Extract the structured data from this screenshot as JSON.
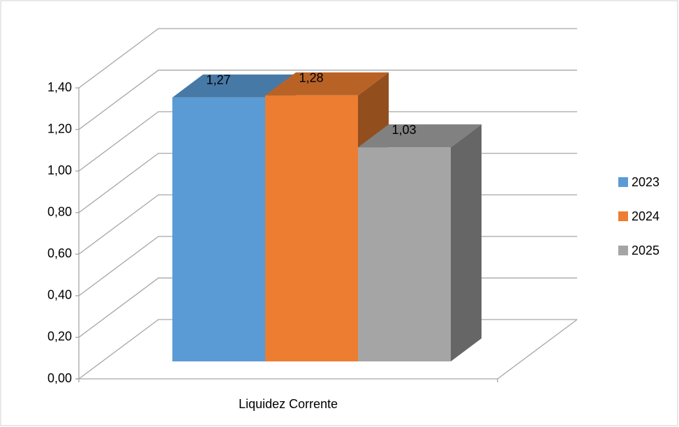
{
  "chart_data": {
    "type": "bar3d",
    "categories": [
      "Liquidez Corrente"
    ],
    "series": [
      {
        "name": "2023",
        "color": "#5b9bd5",
        "values": [
          1.27
        ],
        "value_labels": [
          "1,27"
        ]
      },
      {
        "name": "2024",
        "color": "#ed7d31",
        "values": [
          1.28
        ],
        "value_labels": [
          "1,28"
        ]
      },
      {
        "name": "2025",
        "color": "#a5a5a5",
        "values": [
          1.03
        ],
        "value_labels": [
          "1,03"
        ]
      }
    ],
    "ylim": [
      0,
      1.4
    ],
    "yticks": [
      {
        "value": 0,
        "label": "0,00"
      },
      {
        "value": 0.2,
        "label": "0,20"
      },
      {
        "value": 0.4,
        "label": "0,40"
      },
      {
        "value": 0.6,
        "label": "0,60"
      },
      {
        "value": 0.8,
        "label": "0,80"
      },
      {
        "value": 1,
        "label": "1,00"
      },
      {
        "value": 1.2,
        "label": "1,20"
      },
      {
        "value": 1.4,
        "label": "1,40"
      }
    ],
    "grid": true,
    "legend": "right"
  }
}
